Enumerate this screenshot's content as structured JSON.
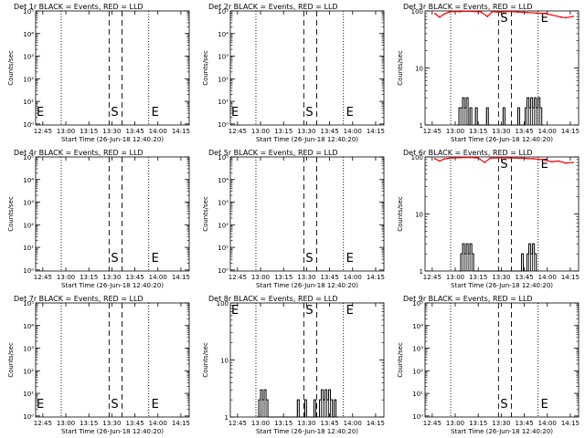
{
  "figure": {
    "background": "#ffffff",
    "axis_color": "#000000",
    "events_color": "#000000",
    "lld_color": "#ff0000"
  },
  "chart_data": [
    {
      "type": "line",
      "title": "Det 1r BLACK = Events, RED = LLD",
      "xlabel": "Start Time (26-Jun-18 12:40:20)",
      "ylabel": "Counts/sec",
      "x_ticks": [
        "12:45",
        "13:00",
        "13:15",
        "13:30",
        "13:45",
        "14:00",
        "14:15"
      ],
      "y_scale": "log",
      "ylim": [
        0.9,
        100000
      ],
      "y_ticks": [
        "10⁰",
        "10¹",
        "10²",
        "10³",
        "10⁴",
        "10⁵"
      ],
      "y_tick_values": [
        1,
        10,
        100,
        1000,
        10000,
        100000
      ],
      "markers": {
        "E_left": "E",
        "S": "S",
        "E": "E"
      },
      "events": [],
      "lld": []
    },
    {
      "type": "line",
      "title": "Det 2r BLACK = Events, RED = LLD",
      "xlabel": "Start Time (26-Jun-18 12:40:20)",
      "ylabel": "Counts/sec",
      "x_ticks": [
        "12:45",
        "13:00",
        "13:15",
        "13:30",
        "13:45",
        "14:00",
        "14:15"
      ],
      "y_scale": "log",
      "ylim": [
        0.9,
        100000
      ],
      "y_ticks": [
        "10⁰",
        "10¹",
        "10²",
        "10³",
        "10⁴",
        "10⁵"
      ],
      "y_tick_values": [
        1,
        10,
        100,
        1000,
        10000,
        100000
      ],
      "markers": {
        "E_left": "E",
        "S": "S",
        "E": "E"
      },
      "events": [],
      "lld": []
    },
    {
      "type": "line",
      "title": "Det 3r BLACK = Events, RED = LLD",
      "xlabel": "Start Time (26-Jun-18 12:40:20)",
      "ylabel": "Counts/sec",
      "x_ticks": [
        "12:45",
        "13:00",
        "13:15",
        "13:30",
        "13:45",
        "14:00",
        "14:15"
      ],
      "y_scale": "log",
      "ylim": [
        1,
        100
      ],
      "y_ticks": [
        "1",
        "10",
        "100"
      ],
      "y_tick_values": [
        1,
        10,
        100
      ],
      "markers": {
        "E_left": "",
        "S": "S",
        "E": "E"
      },
      "events": [
        [
          13.02,
          1
        ],
        [
          13.04,
          2
        ],
        [
          13.06,
          2
        ],
        [
          13.08,
          3
        ],
        [
          13.1,
          2
        ],
        [
          13.12,
          3
        ],
        [
          13.14,
          1
        ],
        [
          13.16,
          2
        ],
        [
          13.18,
          1
        ],
        [
          13.22,
          2
        ],
        [
          13.24,
          1
        ],
        [
          13.34,
          2
        ],
        [
          13.36,
          1
        ],
        [
          13.52,
          2
        ],
        [
          13.54,
          1
        ],
        [
          13.6,
          1
        ],
        [
          13.68,
          2
        ],
        [
          13.7,
          1
        ],
        [
          13.76,
          2
        ],
        [
          13.78,
          3
        ],
        [
          13.8,
          2
        ],
        [
          13.82,
          3
        ],
        [
          13.84,
          2
        ],
        [
          13.86,
          3
        ],
        [
          13.88,
          2
        ],
        [
          13.9,
          3
        ],
        [
          13.92,
          2
        ],
        [
          13.94,
          1
        ]
      ],
      "lld": [
        [
          12.78,
          90
        ],
        [
          12.83,
          78
        ],
        [
          12.88,
          88
        ],
        [
          12.93,
          95
        ],
        [
          12.98,
          98
        ],
        [
          13.05,
          97
        ],
        [
          13.12,
          99
        ],
        [
          13.2,
          98
        ],
        [
          13.28,
          96
        ],
        [
          13.35,
          80
        ],
        [
          13.4,
          97
        ],
        [
          13.48,
          95
        ],
        [
          13.58,
          98
        ],
        [
          13.68,
          96
        ],
        [
          13.78,
          94
        ],
        [
          13.88,
          92
        ],
        [
          13.98,
          90
        ],
        [
          14.05,
          85
        ],
        [
          14.15,
          78
        ],
        [
          14.2,
          76
        ],
        [
          14.28,
          80
        ]
      ]
    },
    {
      "type": "line",
      "title": "Det 4r BLACK = Events, RED = LLD",
      "xlabel": "Start Time (26-Jun-18 12:40:20)",
      "ylabel": "Counts/sec",
      "x_ticks": [
        "12:45",
        "13:00",
        "13:15",
        "13:30",
        "13:45",
        "14:00",
        "14:15"
      ],
      "y_scale": "log",
      "ylim": [
        0.9,
        100000
      ],
      "y_ticks": [
        "10⁰",
        "10¹",
        "10²",
        "10³",
        "10⁴",
        "10⁵"
      ],
      "y_tick_values": [
        1,
        10,
        100,
        1000,
        10000,
        100000
      ],
      "markers": {
        "E_left": "",
        "S": "S",
        "E": "E"
      },
      "events": [],
      "lld": []
    },
    {
      "type": "line",
      "title": "Det 5r BLACK = Events, RED = LLD",
      "xlabel": "Start Time (26-Jun-18 12:40:20)",
      "ylabel": "Counts/sec",
      "x_ticks": [
        "12:45",
        "13:00",
        "13:15",
        "13:30",
        "13:45",
        "14:00",
        "14:15"
      ],
      "y_scale": "log",
      "ylim": [
        0.9,
        100000
      ],
      "y_ticks": [
        "10⁰",
        "10¹",
        "10²",
        "10³",
        "10⁴",
        "10⁵"
      ],
      "y_tick_values": [
        1,
        10,
        100,
        1000,
        10000,
        100000
      ],
      "markers": {
        "E_left": "",
        "S": "S",
        "E": "E"
      },
      "events": [],
      "lld": []
    },
    {
      "type": "line",
      "title": "Det 6r BLACK = Events, RED = LLD",
      "xlabel": "Start Time (26-Jun-18 12:40:20)",
      "ylabel": "Counts/sec",
      "x_ticks": [
        "12:45",
        "13:00",
        "13:15",
        "13:30",
        "13:45",
        "14:00",
        "14:15"
      ],
      "y_scale": "log",
      "ylim": [
        1,
        100
      ],
      "y_ticks": [
        "1",
        "10",
        "100"
      ],
      "y_tick_values": [
        1,
        10,
        100
      ],
      "markers": {
        "E_left": "",
        "S": "S",
        "E": "E"
      },
      "events": [
        [
          13.04,
          1
        ],
        [
          13.06,
          2
        ],
        [
          13.08,
          3
        ],
        [
          13.1,
          2
        ],
        [
          13.12,
          3
        ],
        [
          13.14,
          2
        ],
        [
          13.16,
          3
        ],
        [
          13.18,
          2
        ],
        [
          13.2,
          1
        ],
        [
          13.72,
          2
        ],
        [
          13.74,
          1
        ],
        [
          13.78,
          2
        ],
        [
          13.8,
          3
        ],
        [
          13.82,
          2
        ],
        [
          13.84,
          3
        ],
        [
          13.86,
          2
        ],
        [
          13.88,
          1
        ]
      ],
      "lld": [
        [
          12.78,
          93
        ],
        [
          12.83,
          85
        ],
        [
          12.88,
          92
        ],
        [
          12.95,
          96
        ],
        [
          13.05,
          97
        ],
        [
          13.15,
          98
        ],
        [
          13.25,
          96
        ],
        [
          13.32,
          80
        ],
        [
          13.38,
          95
        ],
        [
          13.48,
          97
        ],
        [
          13.6,
          96
        ],
        [
          13.72,
          95
        ],
        [
          13.85,
          93
        ],
        [
          13.95,
          90
        ],
        [
          14.05,
          82
        ],
        [
          14.12,
          85
        ],
        [
          14.2,
          78
        ],
        [
          14.28,
          80
        ]
      ]
    },
    {
      "type": "line",
      "title": "Det 7r BLACK = Events, RED = LLD",
      "xlabel": "Start Time (26-Jun-18 12:40:20)",
      "ylabel": "Counts/sec",
      "x_ticks": [
        "12:45",
        "13:00",
        "13:15",
        "13:30",
        "13:45",
        "14:00",
        "14:15"
      ],
      "y_scale": "log",
      "ylim": [
        0.9,
        100000
      ],
      "y_ticks": [
        "10⁰",
        "10¹",
        "10²",
        "10³",
        "10⁴",
        "10⁵"
      ],
      "y_tick_values": [
        1,
        10,
        100,
        1000,
        10000,
        100000
      ],
      "markers": {
        "E_left": "E",
        "S": "S",
        "E": "E"
      },
      "events": [],
      "lld": []
    },
    {
      "type": "line",
      "title": "Det 8r BLACK = Events, RED = LLD",
      "xlabel": "Start Time (26-Jun-18 12:40:20)",
      "ylabel": "Counts/sec",
      "x_ticks": [
        "12:45",
        "13:00",
        "13:15",
        "13:30",
        "13:45",
        "14:00",
        "14:15"
      ],
      "y_scale": "log",
      "ylim": [
        1,
        100
      ],
      "y_ticks": [
        "1",
        "10",
        "100"
      ],
      "y_tick_values": [
        1,
        10,
        100
      ],
      "markers": {
        "E_left": "E",
        "S": "S",
        "E": "E"
      },
      "events": [
        [
          12.96,
          1
        ],
        [
          12.98,
          2
        ],
        [
          13.0,
          3
        ],
        [
          13.02,
          2
        ],
        [
          13.04,
          3
        ],
        [
          13.06,
          2
        ],
        [
          13.08,
          1
        ],
        [
          13.4,
          2
        ],
        [
          13.42,
          1
        ],
        [
          13.48,
          2
        ],
        [
          13.5,
          1
        ],
        [
          13.58,
          2
        ],
        [
          13.6,
          1
        ],
        [
          13.64,
          2
        ],
        [
          13.66,
          3
        ],
        [
          13.68,
          2
        ],
        [
          13.7,
          3
        ],
        [
          13.72,
          2
        ],
        [
          13.74,
          3
        ],
        [
          13.76,
          2
        ],
        [
          13.78,
          1
        ],
        [
          13.8,
          2
        ],
        [
          13.82,
          1
        ]
      ],
      "lld": []
    },
    {
      "type": "line",
      "title": "Det 9r BLACK = Events, RED = LLD",
      "xlabel": "Start Time (26-Jun-18 12:40:20)",
      "ylabel": "Counts/sec",
      "x_ticks": [
        "12:45",
        "13:00",
        "13:15",
        "13:30",
        "13:45",
        "14:00",
        "14:15"
      ],
      "y_scale": "log",
      "ylim": [
        0.9,
        100000
      ],
      "y_ticks": [
        "10⁰",
        "10¹",
        "10²",
        "10³",
        "10⁴",
        "10⁵"
      ],
      "y_tick_values": [
        1,
        10,
        100,
        1000,
        10000,
        100000
      ],
      "markers": {
        "E_left": "",
        "S": "S",
        "E": "E"
      },
      "events": [],
      "lld": []
    }
  ]
}
